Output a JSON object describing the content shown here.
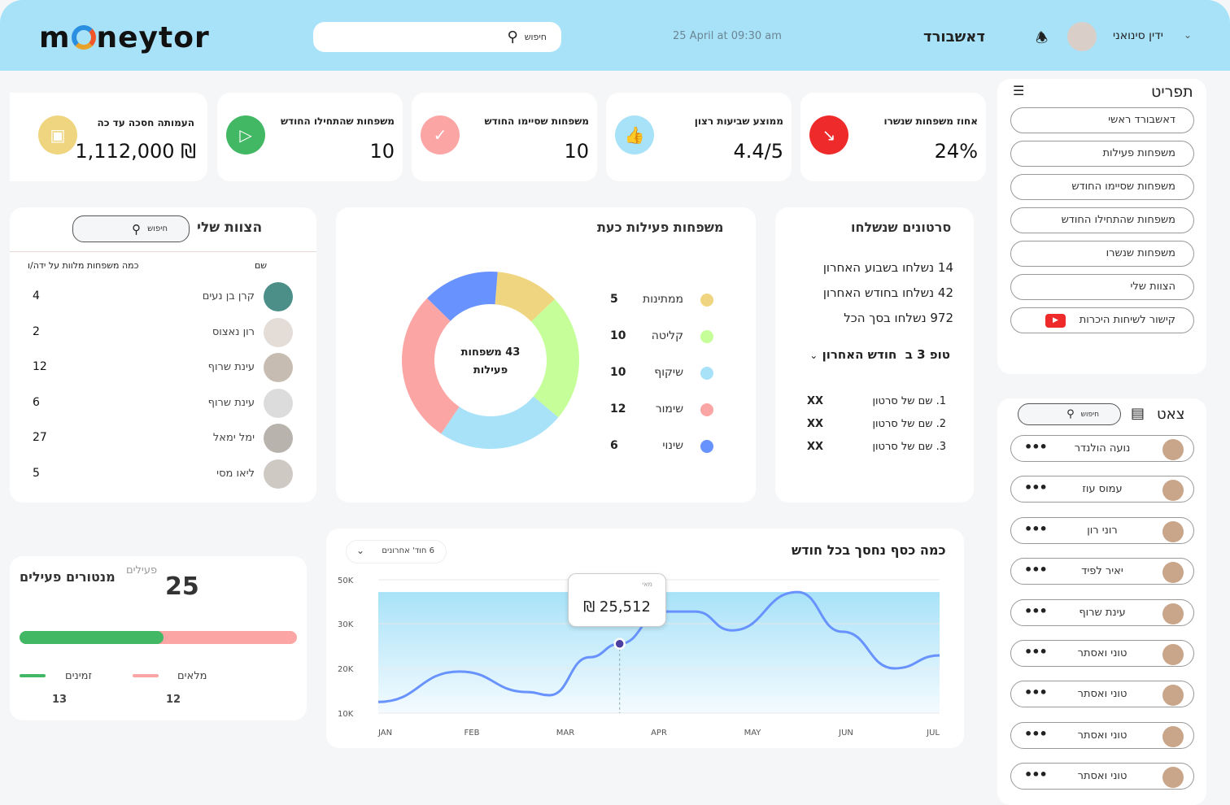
{
  "header": {
    "logo": "moneytor",
    "search_placeholder": "חיפוש",
    "datetime": "25 April at 09:30 am",
    "title": "דאשבורד",
    "user_name": "ידין סינואני"
  },
  "stats": [
    {
      "title": "אחוז משפחות שנשרו",
      "value": "24%",
      "icon": "trend-down-icon",
      "color": "#ee2a2a"
    },
    {
      "title": "ממוצע שביעות רצון",
      "value": "4.4/5",
      "icon": "thumbs-up-icon",
      "color": "#a8e2f8"
    },
    {
      "title": "משפחות שסיימו החודש",
      "value": "10",
      "icon": "check-icon",
      "color": "#fca5a5"
    },
    {
      "title": "משפחות שהתחילו החודש",
      "value": "10",
      "icon": "play-icon",
      "color": "#42b764"
    },
    {
      "title": "העמותה חסכה עד כה",
      "value": "₪ 1,112,000",
      "icon": "wallet-icon",
      "color": "#f0d580"
    }
  ],
  "menu": {
    "title": "תפריט",
    "items": [
      "דאשבורד ראשי",
      "משפחות פעילות",
      "משפחות שסיימו החודש",
      "משפחות שהתחילו החודש",
      "משפחות שנשרו",
      "הצוות שלי",
      "קישור לשיחות היכרות"
    ]
  },
  "chat": {
    "title": "צאט",
    "search_placeholder": "חיפוש",
    "items": [
      "נועה הולנדר",
      "עמוס עוז",
      "רוני רון",
      "יאיר לפיד",
      "עינת שרוף",
      "טוני ואסתר",
      "טוני ואסתר",
      "טוני ואסתר",
      "טוני ואסתר"
    ]
  },
  "team": {
    "title": "הצוות שלי",
    "search_placeholder": "חיפוש",
    "col_name": "שם",
    "col_count": "כמה משפחות מלוות על ידה/ו",
    "rows": [
      {
        "name": "קרן בן נעים",
        "count": "4"
      },
      {
        "name": "רון נאצוס",
        "count": "2"
      },
      {
        "name": "עינת שרוף",
        "count": "12"
      },
      {
        "name": "עינת שרוף",
        "count": "6"
      },
      {
        "name": "ימל ימאל",
        "count": "27"
      },
      {
        "name": "ליאו מסי",
        "count": "5"
      }
    ]
  },
  "active_families": {
    "title": "משפחות פעילות כעת",
    "center_line1": "43 משפחות",
    "center_line2": "פעילות",
    "chart_data": {
      "type": "pie",
      "donut": true,
      "categories": [
        "ממתינות",
        "קליטה",
        "שיקוף",
        "שימור",
        "שינוי"
      ],
      "values": [
        5,
        10,
        10,
        12,
        6
      ],
      "colors": [
        "#f0d580",
        "#c6fe9a",
        "#a8e2f8",
        "#fca5a5",
        "#6893fe"
      ]
    }
  },
  "videos": {
    "title": "סרטונים שנשלחו",
    "stats": [
      "14  נשלחו בשבוע האחרון",
      "42 נשלחו בחודש האחרון",
      "972 נשלחו בסך הכל"
    ],
    "top_label": "טופ 3 ב",
    "top_period": "חודש האחרון",
    "top": [
      {
        "name": "1.  שם של סרטון",
        "value": "XX"
      },
      {
        "name": "2. שם של סרטון",
        "value": "XX"
      },
      {
        "name": "3. שם של סרטון",
        "value": "XX"
      }
    ]
  },
  "mentors": {
    "title": "מנטורים פעילים",
    "total": "25",
    "total_label": "פעילים",
    "available_label": "זמינים",
    "available": "13",
    "full_label": "מלאים",
    "full": "12",
    "available_fraction": 0.52,
    "colors": {
      "available": "#42b764",
      "full": "#fca5a5"
    }
  },
  "savings": {
    "title": "כמה כסף נחסך בכל חודש",
    "range": "6 חוד' אחרונים",
    "tooltip_label": "מאי",
    "tooltip_value": "₪ 25,512",
    "chart_data": {
      "type": "line",
      "xlabels": [
        "JAN",
        "FEB",
        "MAR",
        "APR",
        "MAY",
        "JUN",
        "JUL"
      ],
      "yticks": [
        "10K",
        "20K",
        "30K",
        "50K"
      ],
      "x": [
        0,
        0.87,
        1.6,
        1.83,
        2.26,
        2.58,
        3.04,
        3.39,
        3.78,
        4.48,
        4.96,
        5.52,
        6
      ],
      "y": [
        12.5,
        19.3,
        14.7,
        14,
        22.5,
        25.5,
        35.5,
        35.5,
        28.5,
        44.4,
        28.2,
        20,
        22.9
      ],
      "highlight_index": 5,
      "line_color": "#6893fe"
    }
  }
}
